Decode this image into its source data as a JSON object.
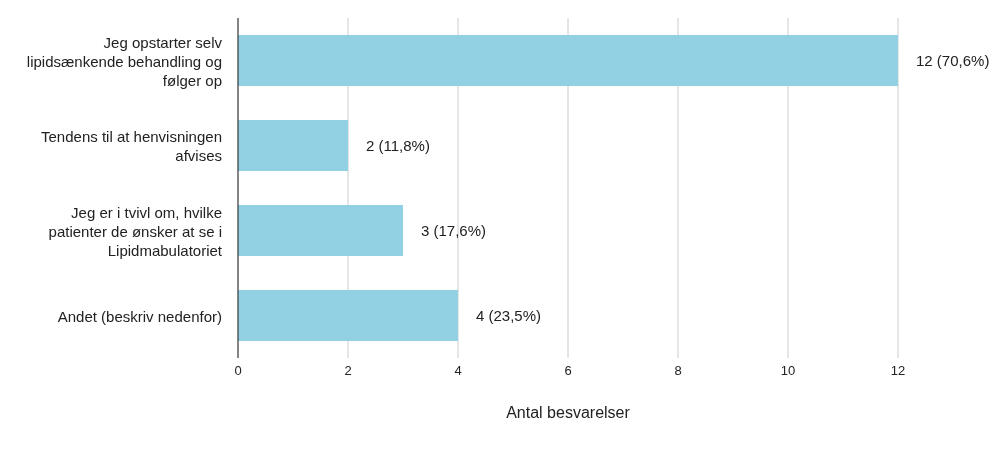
{
  "chart_data": {
    "type": "bar",
    "orientation": "horizontal",
    "xlabel": "Antal besvarelser",
    "categories": [
      "Jeg opstarter selv lipidsænkende behandling og følger op",
      "Tendens til at henvisningen afvises",
      "Jeg er i tvivl om, hvilke patienter de ønsker at se i Lipidmabulatoriet",
      "Andet (beskriv nedenfor)"
    ],
    "values": [
      12,
      2,
      3,
      4
    ],
    "value_labels": [
      "12 (70,6%)",
      "2 (11,8%)",
      "3 (17,6%)",
      "4 (23,5%)"
    ],
    "color": "#92d0e3",
    "xlim": [
      0,
      12
    ],
    "xticks": [
      0,
      2,
      4,
      6,
      8,
      10,
      12
    ],
    "grid": "x",
    "legend": false
  }
}
